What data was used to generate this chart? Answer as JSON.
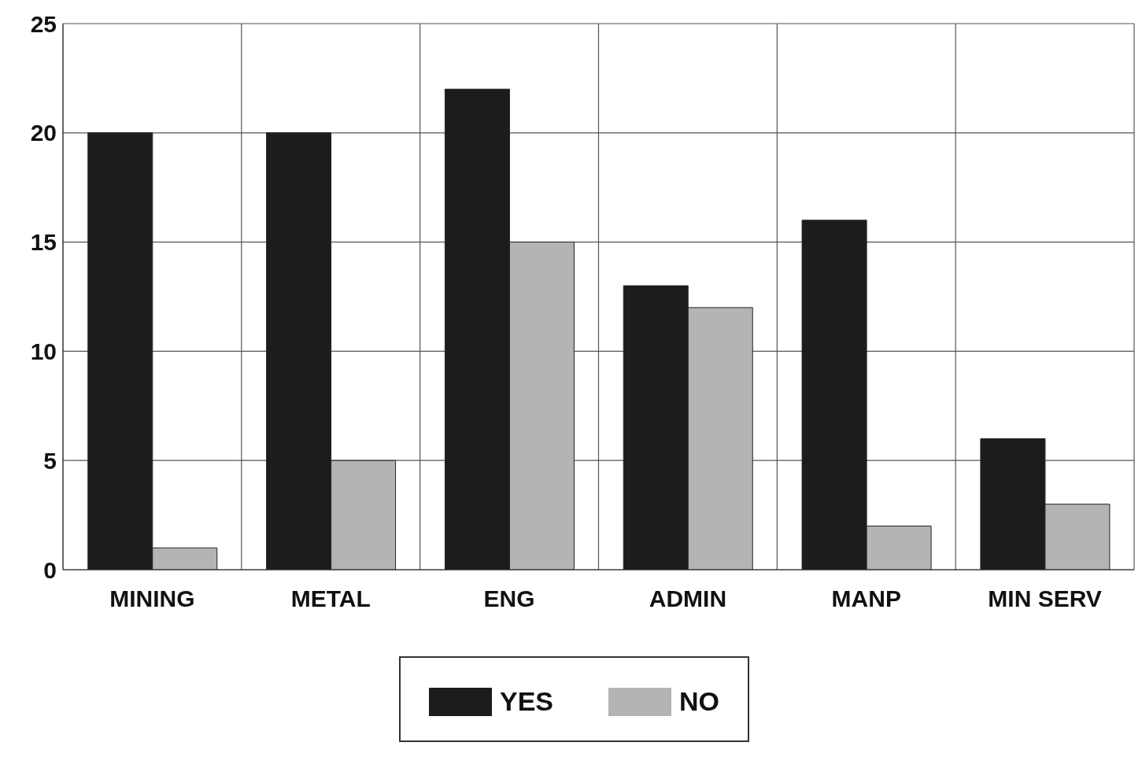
{
  "chart_data": {
    "type": "bar",
    "categories": [
      "MINING",
      "METAL",
      "ENG",
      "ADMIN",
      "MANP",
      "MIN SERV"
    ],
    "series": [
      {
        "name": "YES",
        "color": "#1c1c1c",
        "values": [
          20,
          20,
          22,
          13,
          16,
          6
        ]
      },
      {
        "name": "NO",
        "color": "#b4b4b4",
        "values": [
          1,
          5,
          15,
          12,
          2,
          3
        ]
      }
    ],
    "ylim": [
      0,
      25
    ],
    "yticks": [
      0,
      5,
      10,
      15,
      20,
      25
    ],
    "grid": true,
    "legend": "bottom"
  }
}
